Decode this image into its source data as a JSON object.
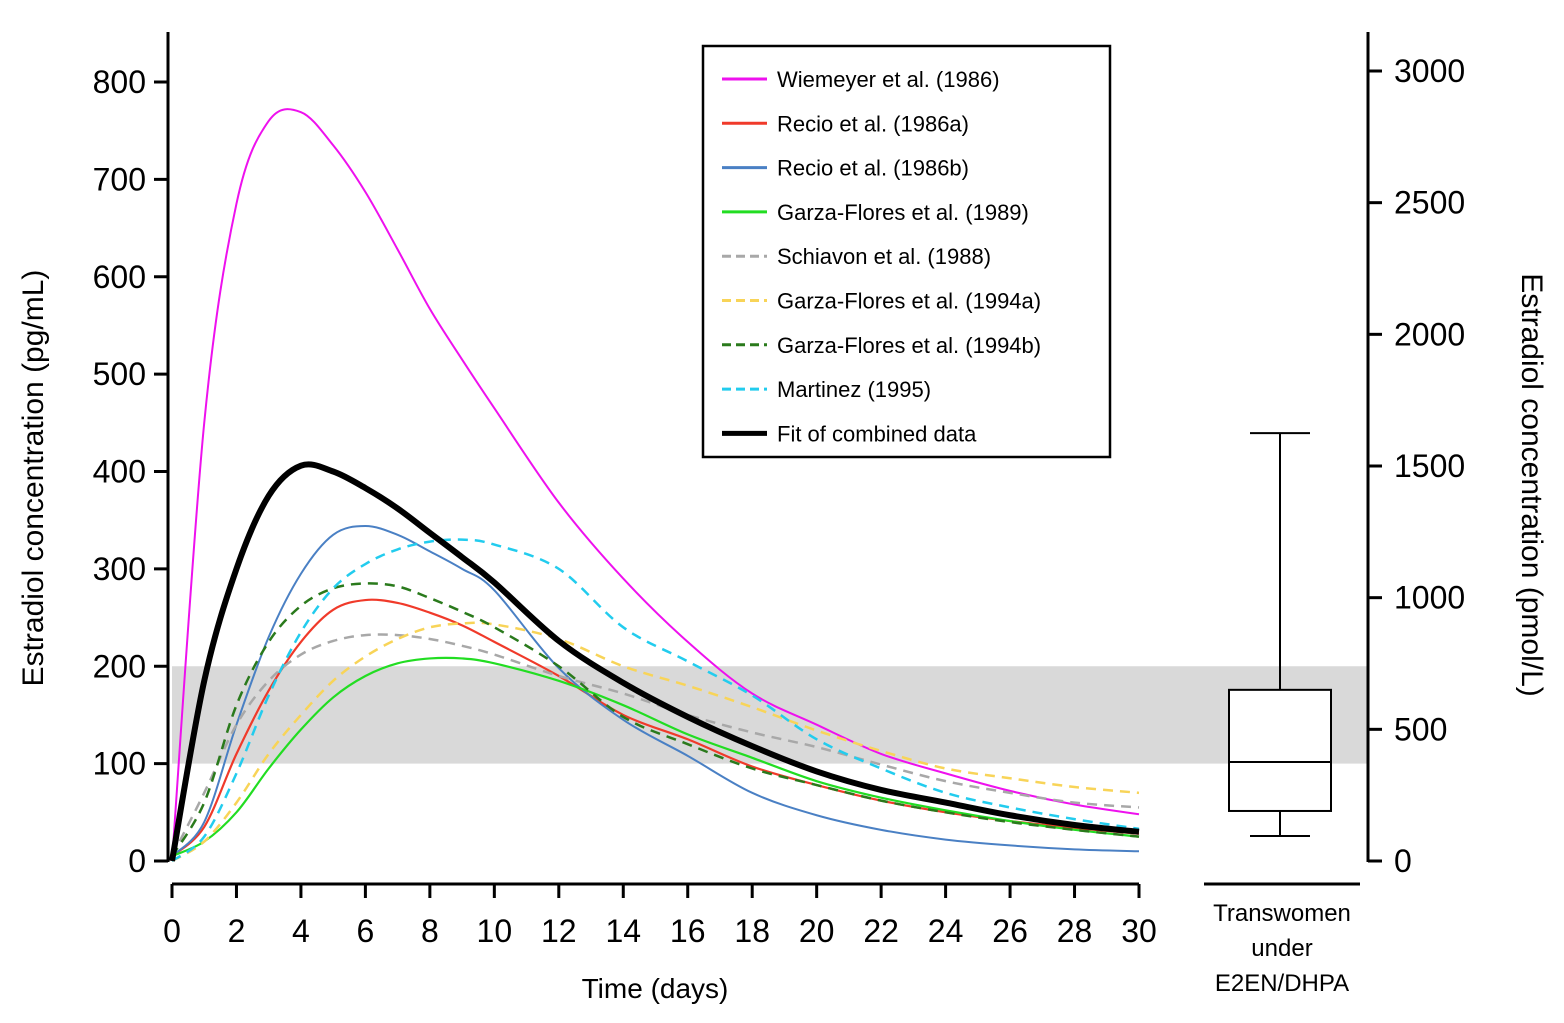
{
  "chart_data": {
    "type": "line",
    "xlabel": "Time (days)",
    "ylabel": "Estradiol concentration (pg/mL)",
    "y2label": "Estradiol concentration (pmol/L)",
    "xlim": [
      0,
      30
    ],
    "ylim": [
      0,
      800
    ],
    "y2lim": [
      0,
      3000
    ],
    "xticks": [
      0,
      2,
      4,
      6,
      8,
      10,
      12,
      14,
      16,
      18,
      20,
      22,
      24,
      26,
      28,
      30
    ],
    "yticks": [
      0,
      100,
      200,
      300,
      400,
      500,
      600,
      700,
      800
    ],
    "y2ticks": [
      0,
      500,
      1000,
      1500,
      2000,
      2500,
      3000
    ],
    "grid": false,
    "legend_position": "top-center",
    "reference_band": {
      "from": 100,
      "to": 200,
      "color": "#d9d9d9"
    },
    "x": [
      0,
      1,
      2,
      3,
      4,
      5,
      6,
      7,
      8,
      9,
      10,
      12,
      14,
      16,
      18,
      20,
      22,
      24,
      26,
      28,
      30
    ],
    "series": [
      {
        "name": "Wiemeyer et al. (1986)",
        "color": "#ee11ee",
        "style": "solid",
        "width": 2,
        "values": [
          0,
          450,
          675,
          760,
          769,
          735,
          687,
          628,
          567,
          515,
          465,
          368,
          290,
          225,
          172,
          140,
          110,
          90,
          72,
          58,
          48
        ]
      },
      {
        "name": "Recio et al. (1986a)",
        "color": "#f03a2a",
        "style": "solid",
        "width": 2.2,
        "values": [
          5,
          35,
          110,
          175,
          225,
          258,
          268,
          265,
          255,
          242,
          225,
          190,
          150,
          125,
          97,
          78,
          62,
          50,
          41,
          34,
          28
        ]
      },
      {
        "name": "Recio et al. (1986b)",
        "color": "#4a80c4",
        "style": "solid",
        "width": 2,
        "values": [
          5,
          40,
          140,
          230,
          295,
          335,
          344,
          335,
          318,
          300,
          278,
          198,
          145,
          108,
          70,
          47,
          32,
          22,
          16,
          12,
          10
        ]
      },
      {
        "name": "Garza-Flores et al. (1989)",
        "color": "#22dd22",
        "style": "solid",
        "width": 2.2,
        "values": [
          5,
          20,
          50,
          95,
          135,
          168,
          190,
          203,
          208,
          208,
          203,
          185,
          160,
          130,
          106,
          82,
          65,
          52,
          41,
          32,
          25
        ]
      },
      {
        "name": "Schiavon et al. (1988)",
        "color": "#a8a8a8",
        "style": "dashed",
        "width": 2.5,
        "values": [
          5,
          70,
          140,
          185,
          212,
          226,
          232,
          232,
          228,
          221,
          212,
          190,
          172,
          150,
          132,
          117,
          99,
          82,
          70,
          60,
          55
        ]
      },
      {
        "name": "Garza-Flores et al. (1994a)",
        "color": "#f8d458",
        "style": "dashed",
        "width": 2.5,
        "values": [
          0,
          20,
          60,
          110,
          150,
          185,
          210,
          228,
          240,
          244,
          243,
          228,
          200,
          180,
          158,
          134,
          113,
          95,
          85,
          76,
          70
        ]
      },
      {
        "name": "Garza-Flores et al. (1994b)",
        "color": "#2a7a1c",
        "style": "dashed",
        "width": 2.5,
        "values": [
          5,
          60,
          160,
          225,
          262,
          280,
          285,
          282,
          270,
          256,
          240,
          200,
          148,
          120,
          95,
          78,
          62,
          50,
          40,
          32,
          25
        ]
      },
      {
        "name": "Martinez (1995)",
        "color": "#22ccee",
        "style": "dashed",
        "width": 2.5,
        "values": [
          0,
          25,
          90,
          170,
          235,
          280,
          305,
          320,
          328,
          330,
          325,
          300,
          240,
          205,
          170,
          125,
          95,
          70,
          55,
          43,
          33
        ]
      },
      {
        "name": "Fit of combined data",
        "color": "#000000",
        "style": "solid",
        "width": 6,
        "values": [
          0,
          185,
          300,
          375,
          406,
          400,
          383,
          362,
          337,
          312,
          286,
          226,
          183,
          148,
          118,
          92,
          73,
          60,
          47,
          37,
          30
        ]
      }
    ],
    "boxplot": {
      "category_label": [
        "Transwomen",
        "under",
        "E2EN/DHPA"
      ],
      "axis": "right",
      "whisker_high": 1625,
      "q3": 650,
      "median": 376,
      "q1": 190,
      "whisker_low": 95
    }
  }
}
